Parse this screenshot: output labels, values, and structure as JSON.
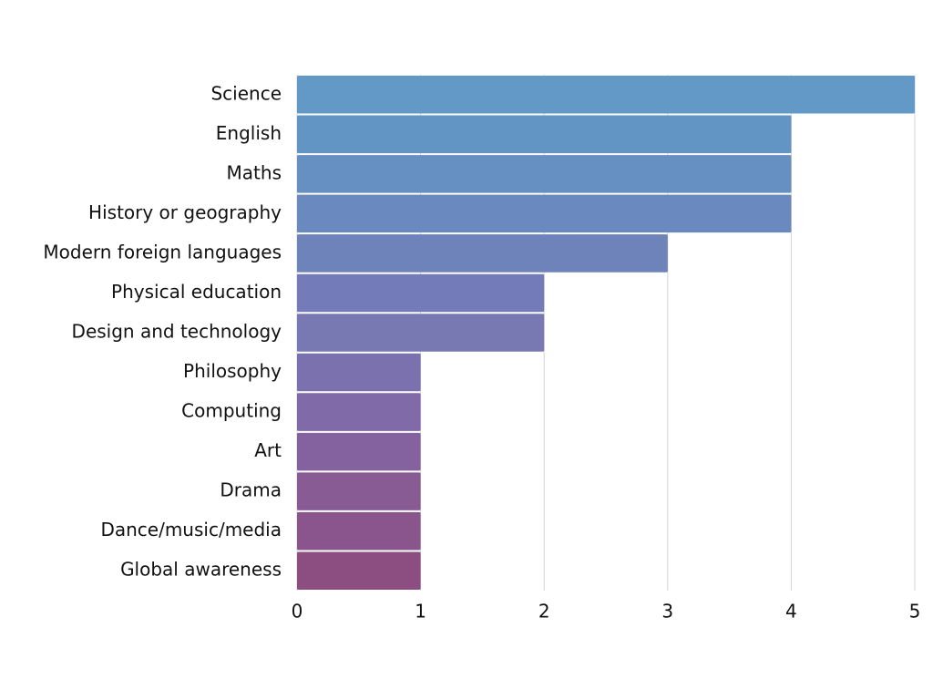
{
  "chart_data": {
    "type": "hbar",
    "categories": [
      "Science",
      "English",
      "Maths",
      "History or geography",
      "Modern foreign languages",
      "Physical education",
      "Design and technology",
      "Philosophy",
      "Computing",
      "Art",
      "Drama",
      "Dance/music/media",
      "Global awareness"
    ],
    "values": [
      5,
      4,
      4,
      4,
      3,
      2,
      2,
      1,
      1,
      1,
      1,
      1,
      1
    ],
    "colors": [
      "#6299c6",
      "#6395c4",
      "#668fc2",
      "#6a89bf",
      "#6f83bb",
      "#737cb8",
      "#7878b3",
      "#7b71ae",
      "#816aa8",
      "#8462a0",
      "#885b95",
      "#8a558c",
      "#8c4e80"
    ],
    "xlim": [
      0,
      5
    ],
    "xticks": [
      0,
      1,
      2,
      3,
      4,
      5
    ],
    "grid": true
  }
}
